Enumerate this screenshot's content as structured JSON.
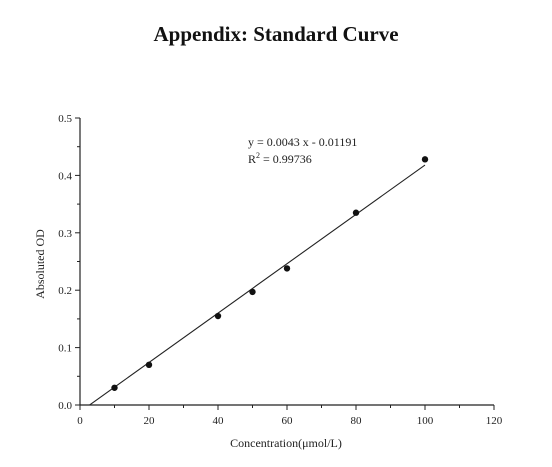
{
  "page": {
    "title": "Appendix: Standard Curve"
  },
  "chart_data": {
    "type": "scatter",
    "title": "",
    "xlabel": "Concentration(μmol/L)",
    "ylabel": "Absoluted OD",
    "xlim": [
      0,
      120
    ],
    "ylim": [
      0.0,
      0.5
    ],
    "x_ticks": [
      0,
      20,
      40,
      60,
      80,
      100,
      120
    ],
    "y_ticks": [
      "0.0",
      "0.1",
      "0.2",
      "0.3",
      "0.4",
      "0.5"
    ],
    "grid": false,
    "series": [
      {
        "x": [
          10,
          20,
          40,
          50,
          60,
          80,
          100
        ],
        "y": [
          0.03,
          0.07,
          0.155,
          0.197,
          0.238,
          0.335,
          0.428
        ]
      }
    ],
    "fit": {
      "slope": 0.0043,
      "intercept": -0.01191,
      "x_range": [
        2.8,
        100
      ],
      "equation": "y = 0.0043 x - 0.01191",
      "r2_prefix": "R",
      "r2_sup": "2",
      "r2_value": " = 0.99736"
    },
    "colors": {
      "axis": "#222222",
      "marker": "#111111",
      "line": "#222222"
    }
  }
}
